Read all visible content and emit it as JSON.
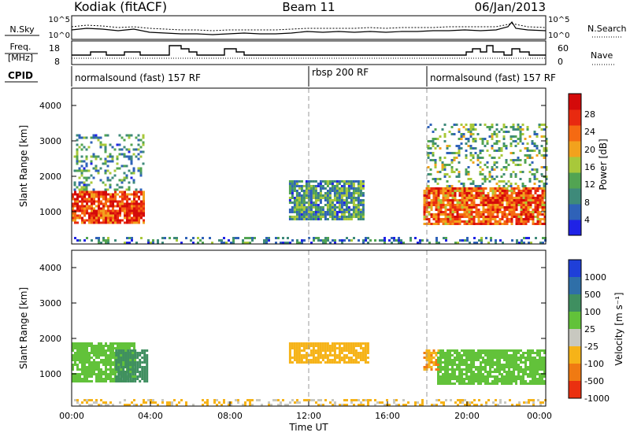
{
  "header": {
    "station": "Kodiak (fitACF)",
    "beam": "Beam 11",
    "date": "06/Jan/2013"
  },
  "strips": {
    "nsky_label": "N.Sky",
    "nsky_ticks": [
      "10^5",
      "10^0"
    ],
    "nsearch_label": "N.Search",
    "nsearch_ticks": [
      "10^5",
      "10^0"
    ],
    "freq_label_1": "Freq.",
    "freq_label_2": "[MHz]",
    "freq_ticks": [
      "18",
      "8"
    ],
    "nave_label": "Nave",
    "nave_ticks": [
      "60",
      "0"
    ],
    "cpid_label": "CPID",
    "cpid_segments": [
      {
        "label": "normalsound (fast) 157 RF",
        "start_hour": 0
      },
      {
        "label": "rbsp 200 RF",
        "start_hour": 12
      },
      {
        "label": "normalsound (fast) 157 RF",
        "start_hour": 18
      }
    ]
  },
  "time_axis": {
    "ticks": [
      "00:00",
      "04:00",
      "08:00",
      "12:00",
      "16:00",
      "20:00",
      "00:00"
    ],
    "label": "Time UT"
  },
  "power_panel": {
    "ylabel": "Slant Range [km]",
    "yticks": [
      "1000",
      "2000",
      "3000",
      "4000"
    ],
    "colorbar_label": "Power [dB]",
    "colorbar_ticks": [
      "4",
      "8",
      "12",
      "16",
      "20",
      "24",
      "28"
    ]
  },
  "velocity_panel": {
    "ylabel": "Slant Range [km]",
    "yticks": [
      "1000",
      "2000",
      "3000",
      "4000"
    ],
    "colorbar_label": "Velocity [m s⁻¹]",
    "colorbar_ticks": [
      "1000",
      "500",
      "100",
      "25",
      "-25",
      "-100",
      "-500",
      "-1000"
    ]
  },
  "chart_data": {
    "type": "heatmap",
    "title": "Kodiak (fitACF)",
    "subtitle": "Beam 11 — 06/Jan/2013",
    "xlabel": "Time UT",
    "xlim_hours": [
      0,
      24
    ],
    "mode_boundaries_hours": [
      12,
      18
    ],
    "panels": [
      {
        "name": "Power",
        "ylabel": "Slant Range [km]",
        "ylim_km": [
          200,
          4600
        ],
        "colorbar": {
          "label": "Power [dB]",
          "range": [
            0,
            32
          ],
          "colors": [
            "#1f22e6",
            "#2f62b8",
            "#3e8a7a",
            "#52a452",
            "#a8c83a",
            "#f2a21d",
            "#f56a12",
            "#e82a10",
            "#d40a0a"
          ]
        },
        "regions": [
          {
            "t": [
              0.0,
              3.6
            ],
            "range_km": [
              800,
              1700
            ],
            "value": 26
          },
          {
            "t": [
              0.1,
              3.6
            ],
            "range_km": [
              1700,
              3300
            ],
            "value": 10
          },
          {
            "t": [
              11.0,
              14.8
            ],
            "range_km": [
              900,
              2000
            ],
            "value": 10
          },
          {
            "t": [
              17.8,
              24.0
            ],
            "range_km": [
              750,
              1800
            ],
            "value": 24
          },
          {
            "t": [
              18.0,
              24.0
            ],
            "range_km": [
              1800,
              3600
            ],
            "value": 12
          },
          {
            "t": [
              0.0,
              24.0
            ],
            "range_km": [
              250,
              400
            ],
            "value": 8
          }
        ]
      },
      {
        "name": "Velocity",
        "ylabel": "Slant Range [km]",
        "ylim_km": [
          200,
          4600
        ],
        "colorbar": {
          "label": "Velocity [m s⁻¹]",
          "levels": [
            1000,
            500,
            100,
            25,
            -25,
            -100,
            -500,
            -1000
          ],
          "colors": [
            "#1f3fd8",
            "#2f6fa8",
            "#3f8f60",
            "#62c23a",
            "#c8c8c0",
            "#f6b318",
            "#f07a12",
            "#ea3010"
          ]
        },
        "regions": [
          {
            "t": [
              0.0,
              3.2
            ],
            "range_km": [
              900,
              2000
            ],
            "value": 0
          },
          {
            "t": [
              2.2,
              3.8
            ],
            "range_km": [
              900,
              1800
            ],
            "value": 60
          },
          {
            "t": [
              11.0,
              15.0
            ],
            "range_km": [
              1400,
              2000
            ],
            "value": -300
          },
          {
            "t": [
              17.8,
              18.6
            ],
            "range_km": [
              1200,
              1800
            ],
            "value": -400
          },
          {
            "t": [
              18.5,
              24.0
            ],
            "range_km": [
              850,
              1800
            ],
            "value": 0
          },
          {
            "t": [
              0.0,
              24.0
            ],
            "range_km": [
              250,
              400
            ],
            "value": -120
          }
        ]
      }
    ]
  }
}
